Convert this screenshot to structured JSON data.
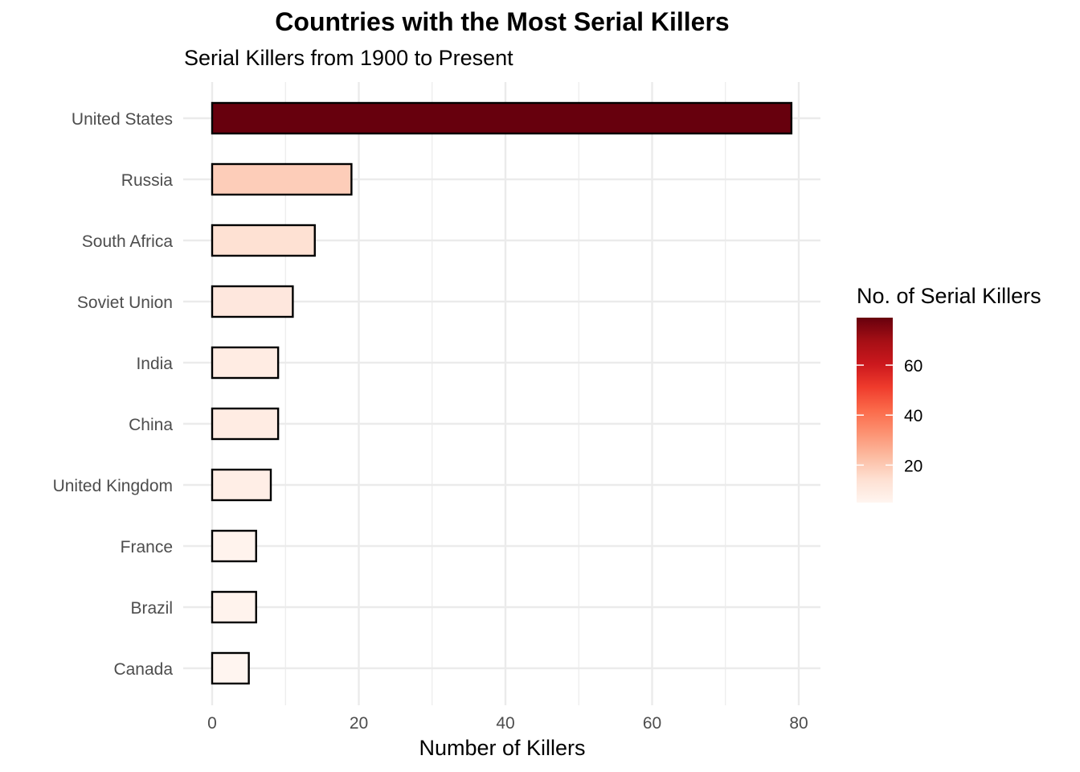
{
  "chart_data": {
    "type": "bar",
    "orientation": "horizontal",
    "title": "Countries with the Most Serial Killers",
    "subtitle": "Serial Killers from 1900 to Present",
    "xlabel": "Number of Killers",
    "ylabel": "",
    "categories": [
      "United States",
      "Russia",
      "South Africa",
      "Soviet Union",
      "India",
      "China",
      "United Kingdom",
      "France",
      "Brazil",
      "Canada"
    ],
    "values": [
      79,
      19,
      14,
      11,
      9,
      9,
      8,
      6,
      6,
      5
    ],
    "xlim": [
      0,
      83
    ],
    "x_ticks": [
      "0",
      "20",
      "40",
      "60",
      "80"
    ],
    "grid": true,
    "legend": {
      "title": "No. of Serial Killers",
      "type": "colorbar",
      "position": "right",
      "range": [
        5,
        79
      ],
      "ticks": [
        "20",
        "40",
        "60"
      ],
      "colors": [
        "#fff5f0",
        "#fee0d2",
        "#fcbba1",
        "#fc9272",
        "#fb6a4a",
        "#ef3b2c",
        "#cb181d",
        "#a50f15",
        "#67000d"
      ]
    },
    "bar_outline_color": "#000000"
  }
}
